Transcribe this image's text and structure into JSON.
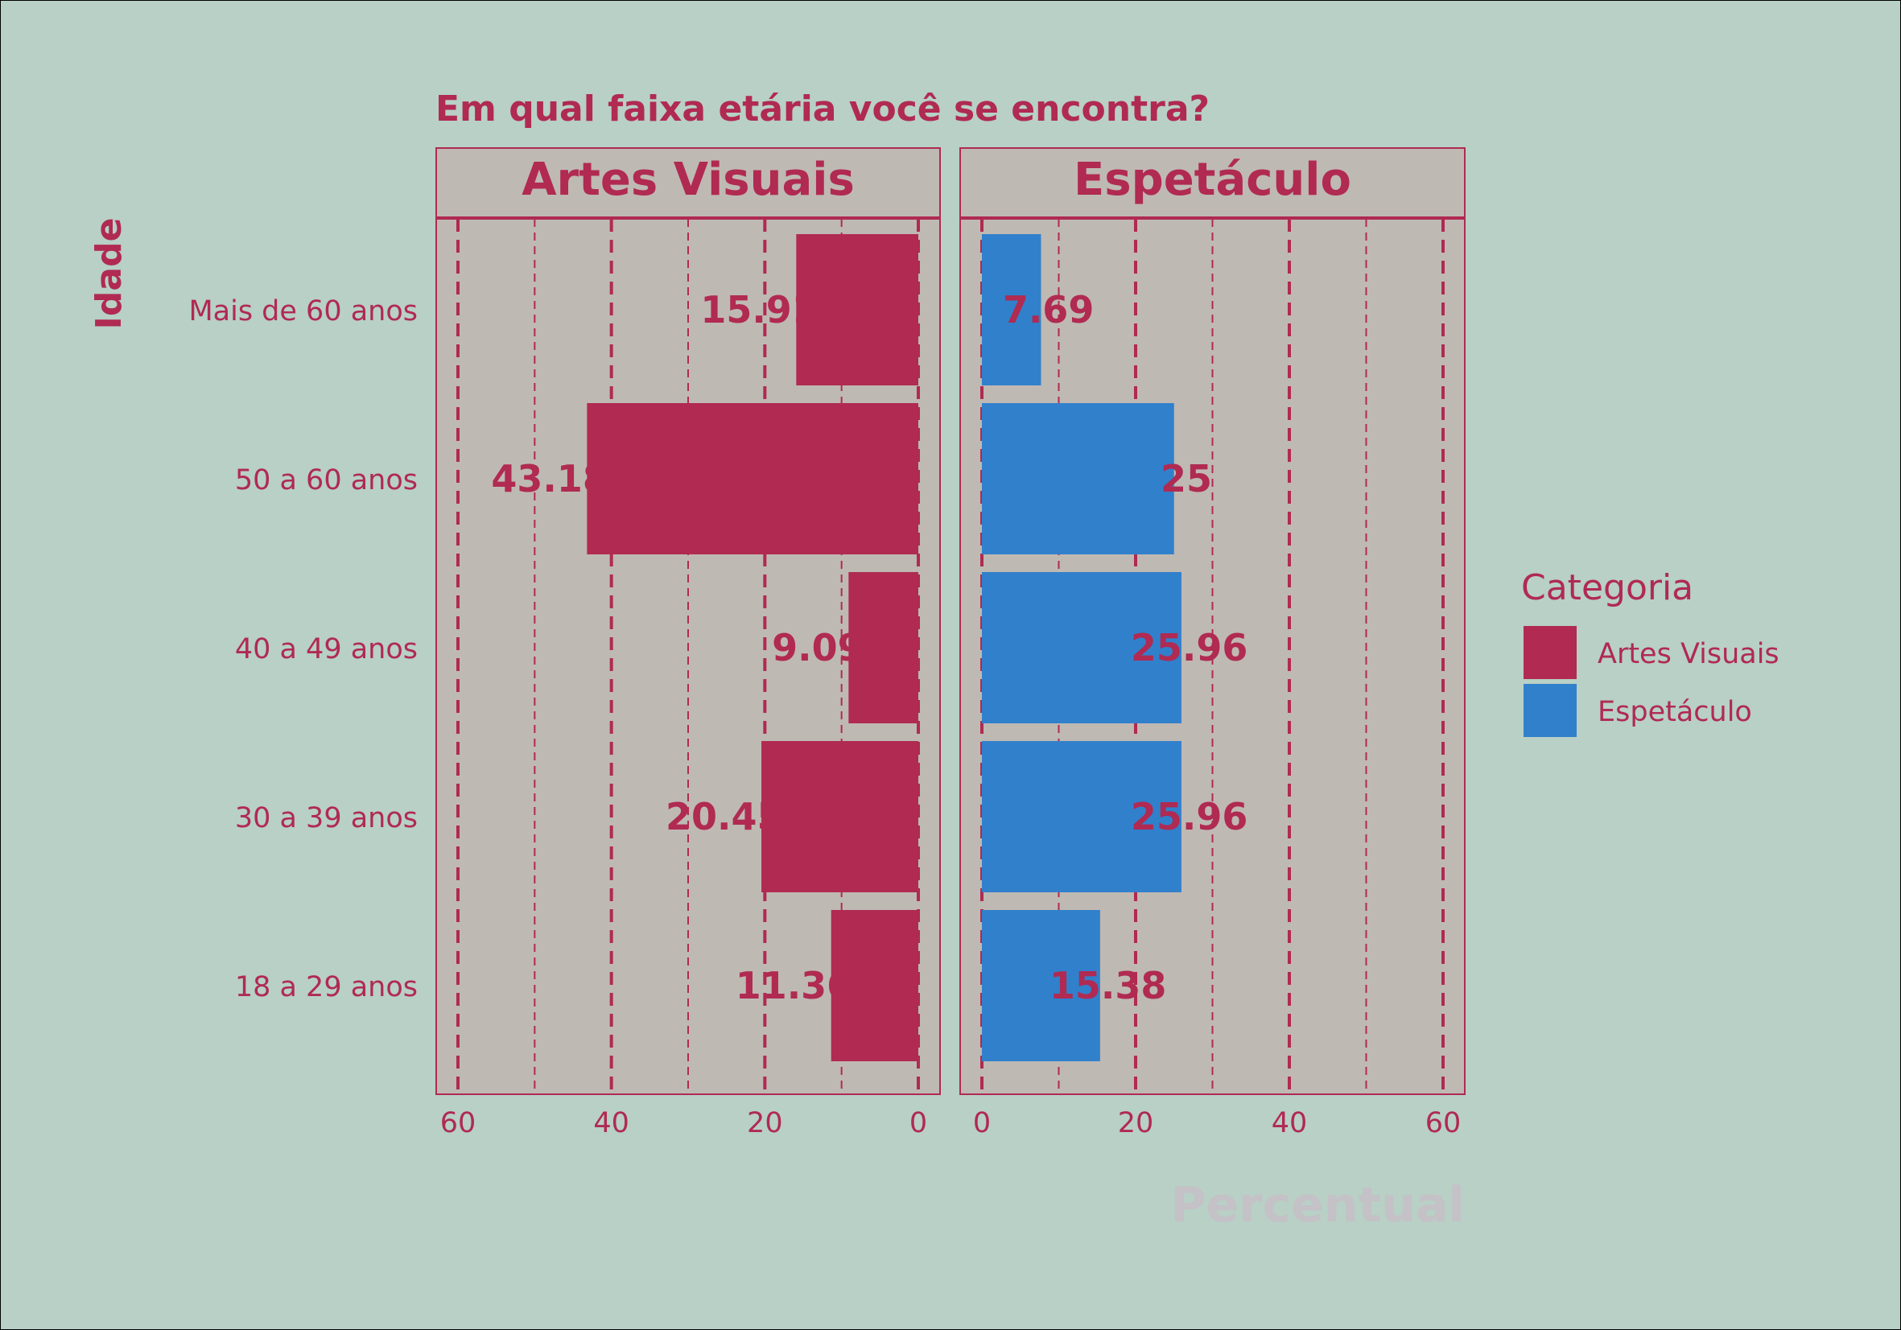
{
  "chart_data": {
    "type": "bar",
    "orientation": "horizontal",
    "layout": "faceted-pyramid",
    "title": "Em qual faixa etária você se encontra?",
    "xlabel": "Percentual",
    "ylabel": "Idade",
    "categories": [
      "Mais de 60 anos",
      "50 a 60 anos",
      "40 a 49 anos",
      "30 a 39 anos",
      "18 a 29 anos"
    ],
    "xlim": [
      0,
      60
    ],
    "x_ticks": [
      60,
      40,
      20,
      0
    ],
    "x_ticks_right": [
      0,
      20,
      40,
      60
    ],
    "grid": true,
    "legend": {
      "title": "Categoria",
      "position": "right",
      "entries": [
        "Artes Visuais",
        "Espetáculo"
      ]
    },
    "series": [
      {
        "name": "Artes Visuais",
        "color": "#b02a52",
        "values": [
          15.91,
          43.18,
          9.09,
          20.45,
          11.36
        ],
        "labels": [
          "15.91",
          "43.18",
          "9.09",
          "20.45",
          "11.36"
        ]
      },
      {
        "name": "Espetáculo",
        "color": "#3180cc",
        "values": [
          7.69,
          25,
          25.96,
          25.96,
          15.38
        ],
        "labels": [
          "7.69",
          "25",
          "25.96",
          "25.96",
          "15.38"
        ]
      }
    ],
    "colors": {
      "background": "#b8d0c6",
      "panel": "#bfb9b3",
      "strip": "#bfb9b3",
      "text": "#b02a52",
      "xlabel": "#c4c1c7"
    }
  }
}
